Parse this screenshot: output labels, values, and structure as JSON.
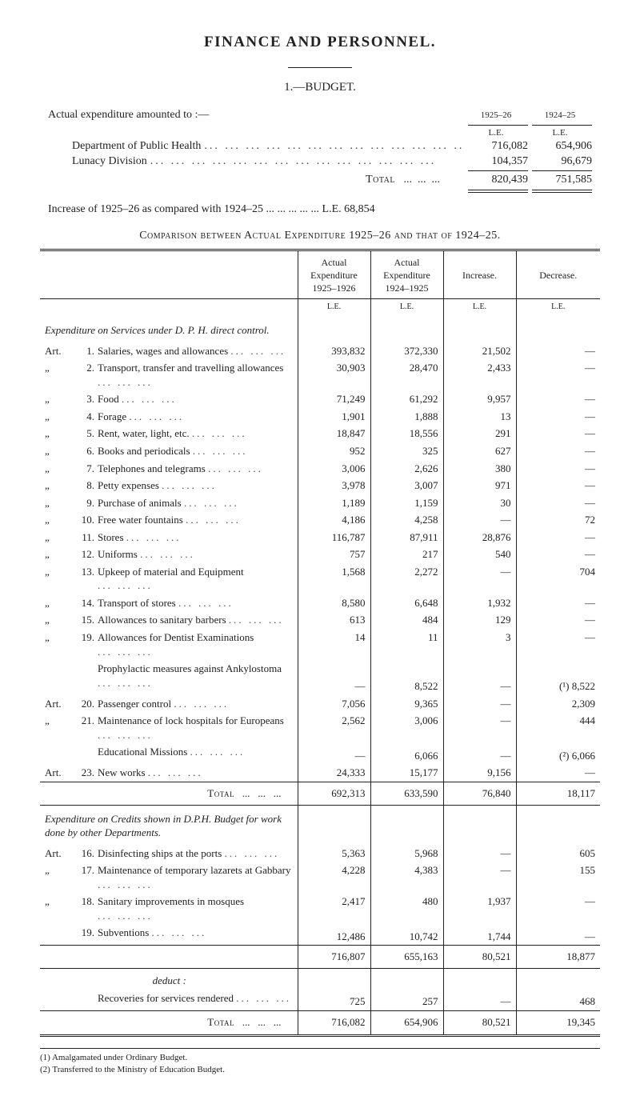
{
  "title": "FINANCE AND PERSONNEL.",
  "section": "1.—BUDGET.",
  "summary": {
    "lead": "Actual expenditure amounted to :—",
    "year_cols": [
      "1925–26",
      "1924–25"
    ],
    "unit": "L.E.",
    "rows": [
      {
        "label": "Department of Public Health",
        "a": "716,082",
        "b": "654,906"
      },
      {
        "label": "Lunacy Division",
        "a": "104,357",
        "b": "96,679"
      }
    ],
    "total_label": "Total",
    "total": {
      "a": "820,439",
      "b": "751,585"
    },
    "increase_line": "Increase of 1925–26 as compared with 1924–25 ...  ...  ...  ...  ...   L.E.  68,854"
  },
  "comparison_caption": "Comparison between Actual Expenditure 1925–26 and that of 1924–25.",
  "table": {
    "head": {
      "c1": "",
      "c2": "Actual Expenditure 1925–1926",
      "c3": "Actual Expenditure 1924–1925",
      "c4": "Increase.",
      "c5": "Decrease.",
      "unit": "L.E."
    },
    "section_a_title": "Expenditure on Services under D. P. H. direct control.",
    "rows_a": [
      {
        "art": "Art.",
        "n": "1.",
        "t": "Salaries, wages and allowances",
        "a": "393,832",
        "b": "372,330",
        "inc": "21,502",
        "dec": "—"
      },
      {
        "art": "„",
        "n": "2.",
        "t": "Transport, transfer and travelling allowances",
        "a": "30,903",
        "b": "28,470",
        "inc": "2,433",
        "dec": "—"
      },
      {
        "art": "„",
        "n": "3.",
        "t": "Food",
        "a": "71,249",
        "b": "61,292",
        "inc": "9,957",
        "dec": "—"
      },
      {
        "art": "„",
        "n": "4.",
        "t": "Forage",
        "a": "1,901",
        "b": "1,888",
        "inc": "13",
        "dec": "—"
      },
      {
        "art": "„",
        "n": "5.",
        "t": "Rent, water, light, etc.",
        "a": "18,847",
        "b": "18,556",
        "inc": "291",
        "dec": "—"
      },
      {
        "art": "„",
        "n": "6.",
        "t": "Books and periodicals",
        "a": "952",
        "b": "325",
        "inc": "627",
        "dec": "—"
      },
      {
        "art": "„",
        "n": "7.",
        "t": "Telephones and telegrams",
        "a": "3,006",
        "b": "2,626",
        "inc": "380",
        "dec": "—"
      },
      {
        "art": "„",
        "n": "8.",
        "t": "Petty expenses",
        "a": "3,978",
        "b": "3,007",
        "inc": "971",
        "dec": "—"
      },
      {
        "art": "„",
        "n": "9.",
        "t": "Purchase of animals",
        "a": "1,189",
        "b": "1,159",
        "inc": "30",
        "dec": "—"
      },
      {
        "art": "„",
        "n": "10.",
        "t": "Free water fountains",
        "a": "4,186",
        "b": "4,258",
        "inc": "—",
        "dec": "72"
      },
      {
        "art": "„",
        "n": "11.",
        "t": "Stores",
        "a": "116,787",
        "b": "87,911",
        "inc": "28,876",
        "dec": "—"
      },
      {
        "art": "„",
        "n": "12.",
        "t": "Uniforms",
        "a": "757",
        "b": "217",
        "inc": "540",
        "dec": "—"
      },
      {
        "art": "„",
        "n": "13.",
        "t": "Upkeep of material and Equipment",
        "a": "1,568",
        "b": "2,272",
        "inc": "—",
        "dec": "704"
      },
      {
        "art": "„",
        "n": "14.",
        "t": "Transport of stores",
        "a": "8,580",
        "b": "6,648",
        "inc": "1,932",
        "dec": "—"
      },
      {
        "art": "„",
        "n": "15.",
        "t": "Allowances to sanitary barbers",
        "a": "613",
        "b": "484",
        "inc": "129",
        "dec": "—"
      },
      {
        "art": "„",
        "n": "19.",
        "t": "Allowances for Dentist Examinations",
        "a": "14",
        "b": "11",
        "inc": "3",
        "dec": "—"
      },
      {
        "art": "",
        "n": "",
        "t": "Prophylactic measures against Ankylostoma",
        "a": "—",
        "b": "8,522",
        "inc": "—",
        "dec": "(¹)   8,522"
      },
      {
        "art": "Art.",
        "n": "20.",
        "t": "Passenger control",
        "a": "7,056",
        "b": "9,365",
        "inc": "—",
        "dec": "2,309"
      },
      {
        "art": "„",
        "n": "21.",
        "t": "Maintenance of lock hospitals for Europeans",
        "a": "2,562",
        "b": "3,006",
        "inc": "—",
        "dec": "444"
      },
      {
        "art": "",
        "n": "",
        "t": "Educational Missions",
        "a": "—",
        "b": "6,066",
        "inc": "—",
        "dec": "(²)   6,066"
      },
      {
        "art": "Art.",
        "n": "23.",
        "t": "New works",
        "a": "24,333",
        "b": "15,177",
        "inc": "9,156",
        "dec": "—"
      }
    ],
    "total_a": {
      "label": "Total",
      "a": "692,313",
      "b": "633,590",
      "inc": "76,840",
      "dec": "18,117"
    },
    "section_b_title": "Expenditure on Credits shown in D.P.H. Budget for work done by other Departments.",
    "rows_b": [
      {
        "art": "Art.",
        "n": "16.",
        "t": "Disinfecting ships at the ports",
        "a": "5,363",
        "b": "5,968",
        "inc": "—",
        "dec": "605"
      },
      {
        "art": "„",
        "n": "17.",
        "t": "Maintenance of temporary lazarets at Gabbary",
        "a": "4,228",
        "b": "4,383",
        "inc": "—",
        "dec": "155"
      },
      {
        "art": "„",
        "n": "18.",
        "t": "Sanitary improvements in mosques",
        "a": "2,417",
        "b": "480",
        "inc": "1,937",
        "dec": "—"
      },
      {
        "art": "",
        "n": "19.",
        "t": "Subventions",
        "a": "12,486",
        "b": "10,742",
        "inc": "1,744",
        "dec": "—"
      }
    ],
    "subtotal_b": {
      "a": "716,807",
      "b": "655,163",
      "inc": "80,521",
      "dec": "18,877"
    },
    "deduct_label": "deduct :",
    "recoveries": {
      "t": "Recoveries for services rendered",
      "a": "725",
      "b": "257",
      "inc": "—",
      "dec": "468"
    },
    "grand_total": {
      "label": "Total",
      "a": "716,082",
      "b": "654,906",
      "inc": "80,521",
      "dec": "19,345"
    }
  },
  "footnotes": [
    "(1) Amalgamated under Ordinary Budget.",
    "(2) Transferred to the Ministry of Education Budget."
  ],
  "dots": "...  ...  ...  ...  ...  ...  ...  ...  ...  ...  ...  ...  ...  ..."
}
